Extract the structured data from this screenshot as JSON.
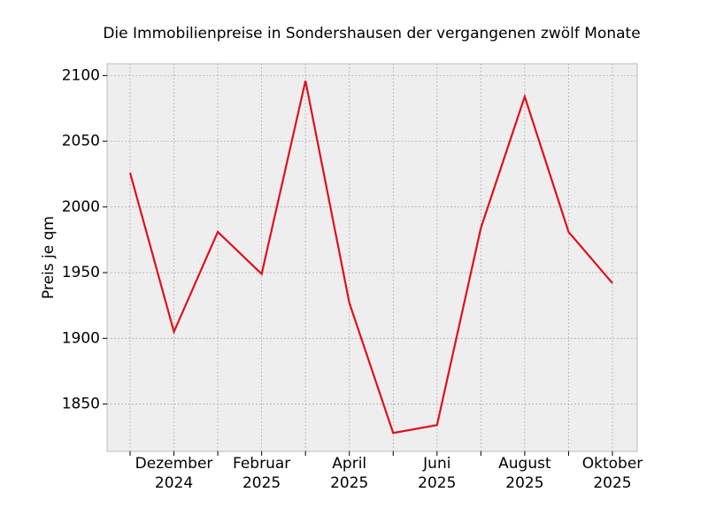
{
  "chart_data": {
    "type": "line",
    "title": "Die Immobilienpreise in Sondershausen der vergangenen zwölf Monate",
    "y_label": "Preis je qm",
    "categories": [
      null,
      "Dezember\n2024",
      null,
      "Februar\n2025",
      null,
      "April\n2025",
      null,
      "Juni\n2025",
      null,
      "August\n2025",
      null,
      "Oktober\n2025"
    ],
    "series": [
      {
        "name": "Preis je qm",
        "color": "#e0101c",
        "values": [
          2026,
          1905,
          1981,
          1949,
          2096,
          1927,
          1828,
          1834,
          1984,
          2084,
          1981,
          1942
        ]
      }
    ],
    "ylim": [
      1814,
      2109
    ],
    "yticks": [
      1850,
      1900,
      1950,
      2000,
      2050,
      2100
    ],
    "grid": true
  }
}
